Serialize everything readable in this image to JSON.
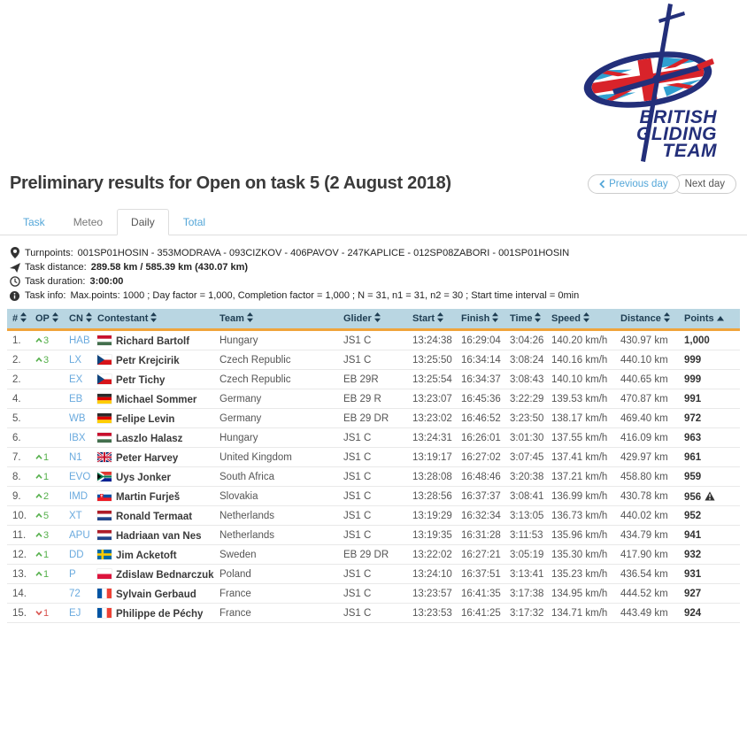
{
  "logo": {
    "line1": "BRITISH",
    "line2": "GLIDING",
    "line3": "TEAM"
  },
  "header": {
    "title": "Preliminary results for Open on task 5 (2 August 2018)",
    "prev_button": "Previous day",
    "next_button": "Next day"
  },
  "tabs": [
    {
      "label": "Task",
      "state": "link"
    },
    {
      "label": "Meteo",
      "state": "muted"
    },
    {
      "label": "Daily",
      "state": "active"
    },
    {
      "label": "Total",
      "state": "link"
    }
  ],
  "task_info": {
    "lines": [
      {
        "icon": "map-marker-icon",
        "label": "Turnpoints:",
        "value": "001SP01HOSIN - 353MODRAVA - 093CIZKOV - 406PAVOV - 247KAPLICE - 012SP08ZABORI - 001SP01HOSIN",
        "bold": false
      },
      {
        "icon": "send-icon",
        "label": "Task distance:",
        "value": "289.58 km  /  585.39 km  (430.07 km)",
        "bold": true
      },
      {
        "icon": "clock-icon",
        "label": "Task duration:",
        "value": "3:00:00",
        "bold": true
      },
      {
        "icon": "info-circle-icon",
        "label": "Task info:",
        "value": "Max.points: 1000 ; Day factor = 1,000, Completion factor = 1,000 ; N = 31, n1 = 31, n2 = 30 ; Start time interval = 0min",
        "bold": false
      }
    ]
  },
  "table": {
    "columns": [
      {
        "label": "#",
        "sort": "both"
      },
      {
        "label": "OP",
        "sort": "both"
      },
      {
        "label": "CN",
        "sort": "both"
      },
      {
        "label": "Contestant",
        "sort": "both"
      },
      {
        "label": "Team",
        "sort": "both"
      },
      {
        "label": "Glider",
        "sort": "both"
      },
      {
        "label": "Start",
        "sort": "both"
      },
      {
        "label": "Finish",
        "sort": "both"
      },
      {
        "label": "Time",
        "sort": "both"
      },
      {
        "label": "Speed",
        "sort": "both"
      },
      {
        "label": "Distance",
        "sort": "both"
      },
      {
        "label": "Points",
        "sort": "asc"
      }
    ],
    "rows": [
      {
        "rank": "1.",
        "op": "3",
        "op_dir": "up",
        "cn": "HAB",
        "flag": "hu",
        "name": "Richard Bartolf",
        "team": "Hungary",
        "glider": "JS1 C",
        "start": "13:24:38",
        "finish": "16:29:04",
        "time": "3:04:26",
        "speed": "140.20 km/h",
        "distance": "430.97 km",
        "points": "1,000",
        "warning": false
      },
      {
        "rank": "2.",
        "op": "3",
        "op_dir": "up",
        "cn": "LX",
        "flag": "cz",
        "name": "Petr Krejcirik",
        "team": "Czech Republic",
        "glider": "JS1 C",
        "start": "13:25:50",
        "finish": "16:34:14",
        "time": "3:08:24",
        "speed": "140.16 km/h",
        "distance": "440.10 km",
        "points": "999",
        "warning": false
      },
      {
        "rank": "2.",
        "op": "",
        "op_dir": "",
        "cn": "EX",
        "flag": "cz",
        "name": "Petr Tichy",
        "team": "Czech Republic",
        "glider": "EB 29R",
        "start": "13:25:54",
        "finish": "16:34:37",
        "time": "3:08:43",
        "speed": "140.10 km/h",
        "distance": "440.65 km",
        "points": "999",
        "warning": false
      },
      {
        "rank": "4.",
        "op": "",
        "op_dir": "",
        "cn": "EB",
        "flag": "de",
        "name": "Michael Sommer",
        "team": "Germany",
        "glider": "EB 29 R",
        "start": "13:23:07",
        "finish": "16:45:36",
        "time": "3:22:29",
        "speed": "139.53 km/h",
        "distance": "470.87 km",
        "points": "991",
        "warning": false
      },
      {
        "rank": "5.",
        "op": "",
        "op_dir": "",
        "cn": "WB",
        "flag": "de",
        "name": "Felipe Levin",
        "team": "Germany",
        "glider": "EB 29 DR",
        "start": "13:23:02",
        "finish": "16:46:52",
        "time": "3:23:50",
        "speed": "138.17 km/h",
        "distance": "469.40 km",
        "points": "972",
        "warning": false
      },
      {
        "rank": "6.",
        "op": "",
        "op_dir": "",
        "cn": "IBX",
        "flag": "hu",
        "name": "Laszlo Halasz",
        "team": "Hungary",
        "glider": "JS1 C",
        "start": "13:24:31",
        "finish": "16:26:01",
        "time": "3:01:30",
        "speed": "137.55 km/h",
        "distance": "416.09 km",
        "points": "963",
        "warning": false
      },
      {
        "rank": "7.",
        "op": "1",
        "op_dir": "up",
        "cn": "N1",
        "flag": "gb",
        "name": "Peter Harvey",
        "team": "United Kingdom",
        "glider": "JS1 C",
        "start": "13:19:17",
        "finish": "16:27:02",
        "time": "3:07:45",
        "speed": "137.41 km/h",
        "distance": "429.97 km",
        "points": "961",
        "warning": false
      },
      {
        "rank": "8.",
        "op": "1",
        "op_dir": "up",
        "cn": "EVO",
        "flag": "za",
        "name": "Uys Jonker",
        "team": "South Africa",
        "glider": "JS1 C",
        "start": "13:28:08",
        "finish": "16:48:46",
        "time": "3:20:38",
        "speed": "137.21 km/h",
        "distance": "458.80 km",
        "points": "959",
        "warning": false
      },
      {
        "rank": "9.",
        "op": "2",
        "op_dir": "up",
        "cn": "IMD",
        "flag": "sk",
        "name": "Martin Furješ",
        "team": "Slovakia",
        "glider": "JS1 C",
        "start": "13:28:56",
        "finish": "16:37:37",
        "time": "3:08:41",
        "speed": "136.99 km/h",
        "distance": "430.78 km",
        "points": "956",
        "warning": true
      },
      {
        "rank": "10.",
        "op": "5",
        "op_dir": "up",
        "cn": "XT",
        "flag": "nl",
        "name": "Ronald Termaat",
        "team": "Netherlands",
        "glider": "JS1 C",
        "start": "13:19:29",
        "finish": "16:32:34",
        "time": "3:13:05",
        "speed": "136.73 km/h",
        "distance": "440.02 km",
        "points": "952",
        "warning": false
      },
      {
        "rank": "11.",
        "op": "3",
        "op_dir": "up",
        "cn": "APU",
        "flag": "nl",
        "name": "Hadriaan van Nes",
        "team": "Netherlands",
        "glider": "JS1 C",
        "start": "13:19:35",
        "finish": "16:31:28",
        "time": "3:11:53",
        "speed": "135.96 km/h",
        "distance": "434.79 km",
        "points": "941",
        "warning": false
      },
      {
        "rank": "12.",
        "op": "1",
        "op_dir": "up",
        "cn": "DD",
        "flag": "se",
        "name": "Jim Acketoft",
        "team": "Sweden",
        "glider": "EB 29 DR",
        "start": "13:22:02",
        "finish": "16:27:21",
        "time": "3:05:19",
        "speed": "135.30 km/h",
        "distance": "417.90 km",
        "points": "932",
        "warning": false
      },
      {
        "rank": "13.",
        "op": "1",
        "op_dir": "up",
        "cn": "P",
        "flag": "pl",
        "name": "Zdislaw Bednarczuk",
        "team": "Poland",
        "glider": "JS1 C",
        "start": "13:24:10",
        "finish": "16:37:51",
        "time": "3:13:41",
        "speed": "135.23 km/h",
        "distance": "436.54 km",
        "points": "931",
        "warning": false
      },
      {
        "rank": "14.",
        "op": "",
        "op_dir": "",
        "cn": "72",
        "flag": "fr",
        "name": "Sylvain Gerbaud",
        "team": "France",
        "glider": "JS1 C",
        "start": "13:23:57",
        "finish": "16:41:35",
        "time": "3:17:38",
        "speed": "134.95 km/h",
        "distance": "444.52 km",
        "points": "927",
        "warning": false
      },
      {
        "rank": "15.",
        "op": "1",
        "op_dir": "down",
        "cn": "EJ",
        "flag": "fr",
        "name": "Philippe de Péchy",
        "team": "France",
        "glider": "JS1 C",
        "start": "13:23:53",
        "finish": "16:41:25",
        "time": "3:17:32",
        "speed": "134.71 km/h",
        "distance": "443.49 km",
        "points": "924",
        "warning": false
      }
    ]
  },
  "colors": {
    "brand_navy": "#232f7a",
    "brand_red": "#d8232a",
    "link_blue": "#53a6d8",
    "cn_blue": "#6aaade",
    "table_header_bg": "#b9d6e2",
    "table_header_text": "#1e3d52",
    "accent_orange": "#f0a43c",
    "op_up_green": "#56b04c",
    "op_down_red": "#d9534f"
  }
}
